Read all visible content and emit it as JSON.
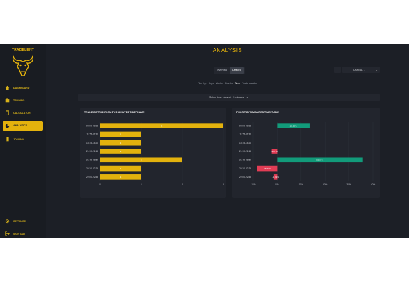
{
  "app": {
    "logo_text": "TRADELENT"
  },
  "sidebar": {
    "items": [
      {
        "label": "DASHBOARD",
        "icon": "home-icon"
      },
      {
        "label": "TRADING",
        "icon": "briefcase-icon"
      },
      {
        "label": "CALCULATOR",
        "icon": "calculator-icon"
      },
      {
        "label": "ANALYTICS",
        "icon": "pie-chart-icon"
      },
      {
        "label": "JOURNAL",
        "icon": "book-icon"
      }
    ],
    "active_index": 3,
    "bottom_items": [
      {
        "label": "SETTINGS",
        "icon": "gear-icon"
      },
      {
        "label": "SIGN OUT",
        "icon": "sign-out-icon"
      }
    ]
  },
  "header": {
    "title": "ANALYSIS"
  },
  "view_toggle": {
    "options": [
      "Overview",
      "Detailed"
    ],
    "selected": "Detailed"
  },
  "account_select": {
    "value": "CAPITAL 1"
  },
  "filters": {
    "label": "Filter by:",
    "options": [
      "Days",
      "Weeks",
      "Months",
      "Time",
      "Trade duration"
    ],
    "selected": "Time"
  },
  "interval": {
    "label": "Select time interval:",
    "value": "5 minutes"
  },
  "chart_data": [
    {
      "type": "bar",
      "orientation": "horizontal",
      "title": "TRADE DISTRIBUTION BY 5 MINUTES TIMEFRAME",
      "categories": [
        "00:00-00:05",
        "11:25-11:30",
        "15:15-15:20",
        "21:10-21:15",
        "21:45-21:50",
        "22:20-22:25",
        "22:50-22:55"
      ],
      "values": [
        3,
        1,
        1,
        1,
        2,
        1,
        1
      ],
      "xlim": [
        0,
        3
      ],
      "ticks": [
        "0",
        "1",
        "2",
        "3"
      ],
      "bar_color": "#e3b20d"
    },
    {
      "type": "bar",
      "orientation": "horizontal",
      "title": "PROFIT BY 5 MINUTES TIMEFRAME",
      "categories": [
        "00:00-00:05",
        "11:25-11:30",
        "15:15-15:20",
        "21:10-21:15",
        "21:45-21:50",
        "22:20-22:25",
        "22:50-22:55"
      ],
      "values": [
        13.53,
        0,
        0,
        -2.27,
        35.84,
        -8.28,
        -1.31
      ],
      "labels": [
        "13.53%",
        "",
        "",
        "-2.27%",
        "35.84%",
        "-8.28%",
        "-1.31%"
      ],
      "xlim": [
        -10,
        40
      ],
      "ticks": [
        "-10%",
        "0%",
        "10%",
        "20%",
        "30%",
        "40%"
      ],
      "positive_color": "#129b7a",
      "negative_color": "#e23d55"
    }
  ]
}
